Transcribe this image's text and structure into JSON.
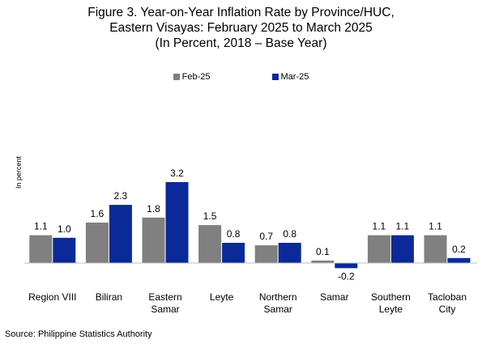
{
  "chart_data": {
    "type": "bar",
    "title": [
      "Figure 3. Year-on-Year Inflation Rate by Province/HUC,",
      "Eastern Visayas: February 2025 to March 2025",
      "(In Percent, 2018 – Base Year)"
    ],
    "ylabel": "In percent",
    "xlabel": "",
    "categories": [
      [
        "Region VIII"
      ],
      [
        "Biliran"
      ],
      [
        "Eastern",
        "Samar"
      ],
      [
        "Leyte"
      ],
      [
        "Northern",
        "Samar"
      ],
      [
        "Samar"
      ],
      [
        "Southern",
        "Leyte"
      ],
      [
        "Tacloban",
        "City"
      ]
    ],
    "series": [
      {
        "name": "Feb-25",
        "color": "#808080",
        "values": [
          1.1,
          1.6,
          1.8,
          1.5,
          0.7,
          0.1,
          1.1,
          1.1
        ]
      },
      {
        "name": "Mar-25",
        "color": "#0a2a9a",
        "values": [
          1.0,
          2.3,
          3.2,
          0.8,
          0.8,
          -0.2,
          1.1,
          0.2
        ]
      }
    ],
    "value_labels": [
      [
        "1.1",
        "1.6",
        "1.8",
        "1.5",
        "0.7",
        "0.1",
        "1.1",
        "1.1"
      ],
      [
        "1.0",
        "2.3",
        "3.2",
        "0.8",
        "0.8",
        "-0.2",
        "1.1",
        "0.2"
      ]
    ],
    "ylim": [
      -0.2,
      3.2
    ],
    "legend_position": "top-center",
    "grid": false
  },
  "source": "Source: Philippine Statistics Authority"
}
